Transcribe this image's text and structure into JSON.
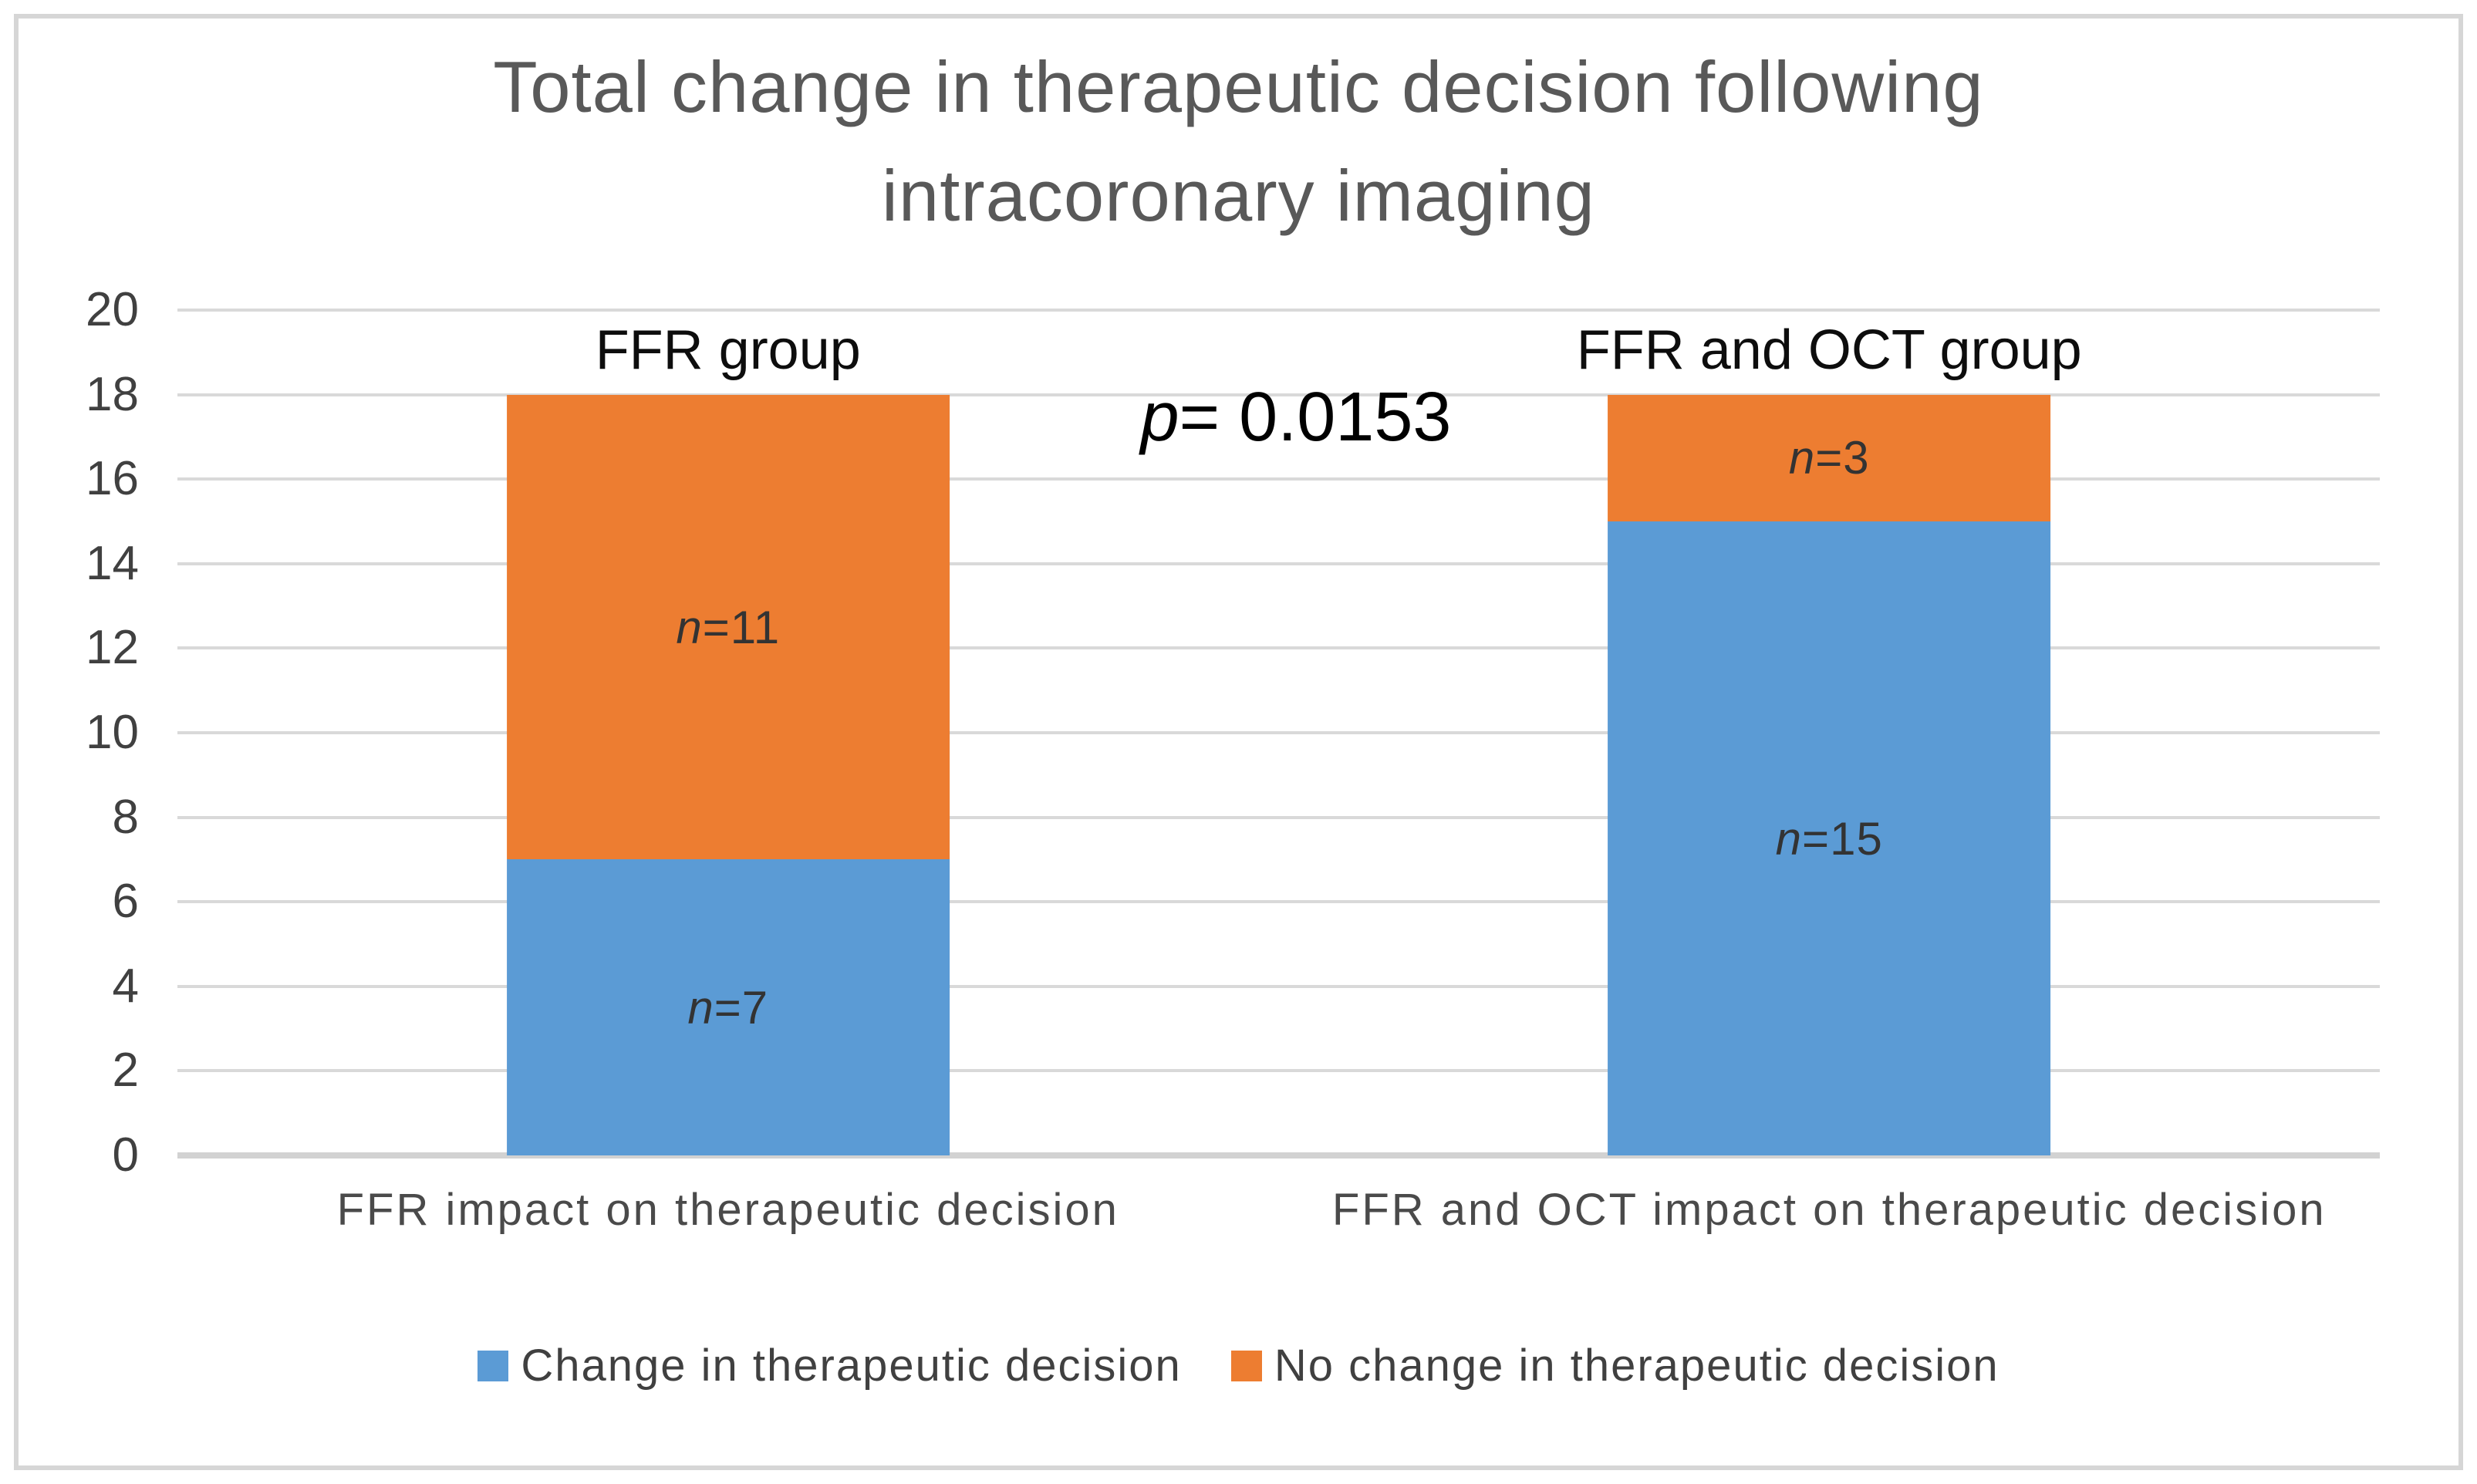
{
  "chart_data": {
    "type": "bar",
    "stacked": true,
    "title": "Total change in therapeutic decision following intracoronary imaging",
    "title_lines": [
      "Total change in therapeutic decision following",
      "intracoronary imaging"
    ],
    "p_value_annotation": {
      "text": "p= 0.0153",
      "italic_prefix": "p",
      "rest": "= 0.0153"
    },
    "group_labels": [
      "FFR group",
      "FFR and OCT group"
    ],
    "categories": [
      "FFR impact on therapeutic decision",
      "FFR and OCT impact on therapeutic decision"
    ],
    "series": [
      {
        "name": "Change in therapeutic decision",
        "color": "#5B9BD5",
        "values": [
          7,
          15
        ],
        "segment_labels": [
          "n=7",
          "n=15"
        ]
      },
      {
        "name": "No change in therapeutic decision",
        "color": "#ED7D31",
        "values": [
          11,
          3
        ],
        "segment_labels": [
          "n=11",
          "n=3"
        ]
      }
    ],
    "ylim": [
      0,
      20
    ],
    "yticks": [
      0,
      2,
      4,
      6,
      8,
      10,
      12,
      14,
      16,
      18,
      20
    ],
    "xlabel": "",
    "ylabel": "",
    "grid": true,
    "legend_position": "bottom"
  },
  "colors": {
    "title": "#595959",
    "axis_labels": "#404040",
    "gridline": "#D9D9D9",
    "segment_label": "#333333",
    "blue_series": "#5B9BD5",
    "orange_series": "#ED7D31",
    "frame_border": "#D6D6D6",
    "background": "#FFFFFF"
  }
}
